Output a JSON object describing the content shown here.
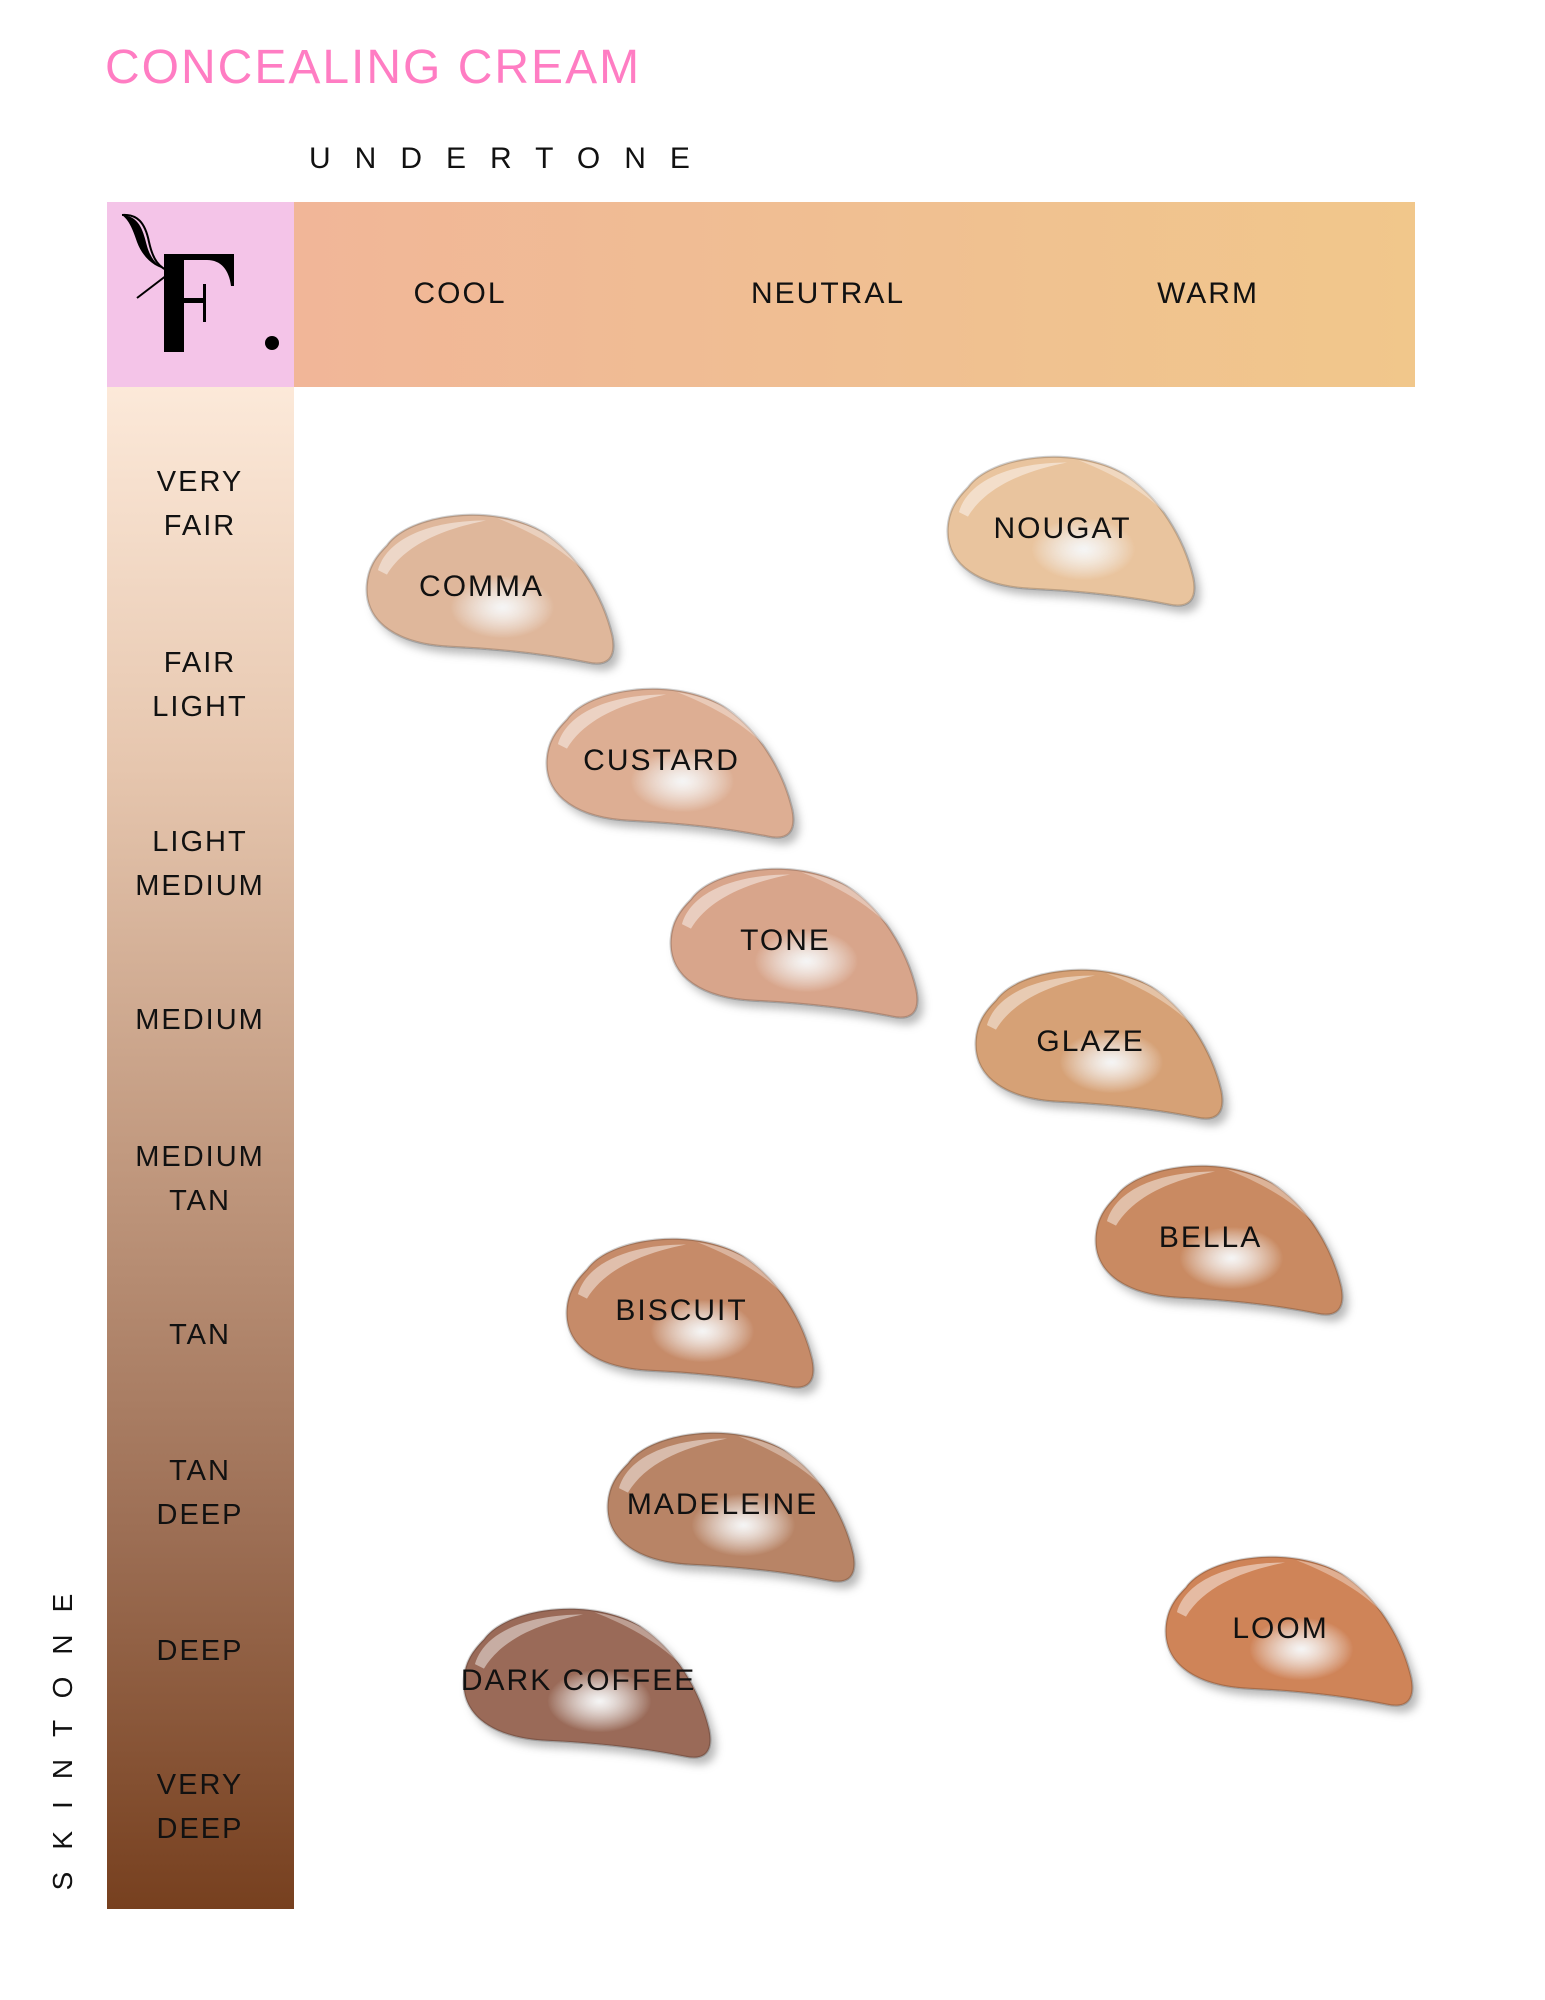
{
  "title": "CONCEALING CREAM",
  "undertone_label": "UNDERTONE",
  "skintone_label": "SKINTONE",
  "logo": {
    "text": "F."
  },
  "colors": {
    "title": "#ff7dc3",
    "logo_bg": "#f4c4e8",
    "band_start": "#f1b698",
    "band_end": "#f1c78b",
    "skin_top": "#fce9d9",
    "skin_bottom": "#77401f"
  },
  "columns": [
    {
      "label": "COOL"
    },
    {
      "label": "NEUTRAL"
    },
    {
      "label": "WARM"
    }
  ],
  "rows": [
    {
      "line1": "VERY",
      "line2": "FAIR"
    },
    {
      "line1": "FAIR",
      "line2": "LIGHT"
    },
    {
      "line1": "LIGHT",
      "line2": "MEDIUM"
    },
    {
      "line1": "MEDIUM",
      "line2": ""
    },
    {
      "line1": "MEDIUM",
      "line2": "TAN"
    },
    {
      "line1": "TAN",
      "line2": ""
    },
    {
      "line1": "TAN",
      "line2": "DEEP"
    },
    {
      "line1": "DEEP",
      "line2": ""
    },
    {
      "line1": "VERY",
      "line2": "DEEP"
    }
  ],
  "shades": [
    {
      "name": "COMMA",
      "color": "#dfb79b",
      "skintone": "VERY FAIR / FAIR LIGHT",
      "undertone": "COOL"
    },
    {
      "name": "NOUGAT",
      "color": "#e9c49e",
      "skintone": "VERY FAIR",
      "undertone": "WARM"
    },
    {
      "name": "CUSTARD",
      "color": "#ddae93",
      "skintone": "FAIR LIGHT",
      "undertone": "COOL / NEUTRAL"
    },
    {
      "name": "TONE",
      "color": "#d8a58b",
      "skintone": "LIGHT MEDIUM",
      "undertone": "NEUTRAL"
    },
    {
      "name": "GLAZE",
      "color": "#d6a176",
      "skintone": "MEDIUM",
      "undertone": "WARM"
    },
    {
      "name": "BELLA",
      "color": "#c98a62",
      "skintone": "MEDIUM TAN",
      "undertone": "WARM"
    },
    {
      "name": "BISCUIT",
      "color": "#c68b69",
      "skintone": "TAN",
      "undertone": "NEUTRAL"
    },
    {
      "name": "MADELEINE",
      "color": "#b88466",
      "skintone": "TAN DEEP",
      "undertone": "NEUTRAL"
    },
    {
      "name": "DARK COFFEE",
      "color": "#9a6b59",
      "skintone": "DEEP",
      "undertone": "COOL"
    },
    {
      "name": "LOOM",
      "color": "#cf8459",
      "skintone": "DEEP",
      "undertone": "WARM"
    }
  ]
}
